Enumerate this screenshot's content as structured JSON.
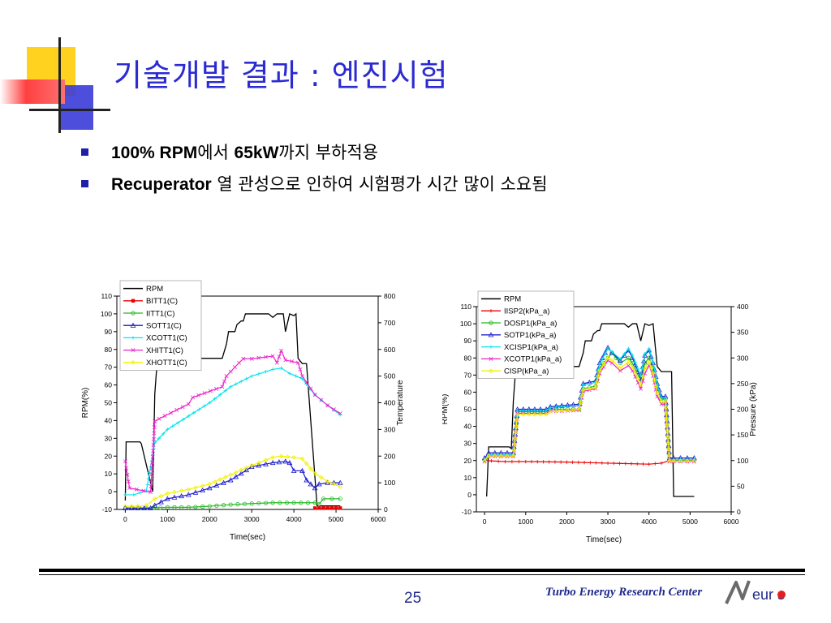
{
  "slide": {
    "title": "기술개발 결과 : 엔진시험",
    "bullets": [
      {
        "bold1": "100% RPM",
        "text1": "에서 ",
        "bold2": "65kW",
        "text2": "까지 부하적용"
      },
      {
        "bold1": "Recuperator",
        "text1": " 열 관성으로 인하여 시험평가 시간 많이 소요됨",
        "bold2": "",
        "text2": ""
      }
    ],
    "page_number": "25",
    "footer_org": "Turbo Energy Research Center",
    "logo_text": "eur s",
    "colors": {
      "title": "#2b2bd2",
      "bullet": "#1f1fa8",
      "footer": "#1e2a8c"
    }
  },
  "chart_data": [
    {
      "type": "line",
      "xlabel": "Time(sec)",
      "ylabel": "RPM(%)",
      "y2label": "Temperature",
      "xlim": [
        -200,
        6000
      ],
      "xticks": [
        0,
        1000,
        2000,
        3000,
        4000,
        5000,
        6000
      ],
      "ylim": [
        -10,
        110
      ],
      "yticks": [
        -10,
        0,
        10,
        20,
        30,
        40,
        50,
        60,
        70,
        80,
        90,
        100,
        110
      ],
      "y2lim": [
        0,
        800
      ],
      "y2ticks": [
        0,
        100,
        200,
        300,
        400,
        500,
        600,
        700,
        800
      ],
      "legend_position": "top-left",
      "series": [
        {
          "name": "RPM",
          "axis": "left",
          "color": "#000000",
          "marker": "none",
          "x": [
            0,
            20,
            100,
            350,
            380,
            650,
            700,
            750,
            1500,
            1550,
            2300,
            2400,
            2450,
            2600,
            2650,
            2750,
            2800,
            2850,
            3400,
            3500,
            3600,
            3700,
            3750,
            3800,
            3900,
            4000,
            4050,
            4100,
            4200,
            4300,
            4550,
            4600,
            5100
          ],
          "y": [
            -5,
            28,
            28,
            28,
            27,
            0,
            55,
            71,
            71,
            75,
            75,
            83,
            90,
            90,
            94,
            96,
            96,
            100,
            100,
            98,
            100,
            100,
            100,
            90,
            100,
            99,
            100,
            75,
            72,
            72,
            -8,
            -8,
            -8
          ]
        },
        {
          "name": "BITT1(C)",
          "axis": "right",
          "color": "#ee0000",
          "marker": "square",
          "x": [
            4500,
            4600,
            4700,
            4800,
            4900,
            5000,
            5100
          ],
          "y": [
            5,
            5,
            5,
            5,
            5,
            5,
            5
          ]
        },
        {
          "name": "IITT1(C)",
          "axis": "right",
          "color": "#22bb22",
          "marker": "circle",
          "x": [
            0,
            500,
            1000,
            1500,
            2000,
            2500,
            3000,
            3500,
            4000,
            4500,
            4600,
            4700,
            5100
          ],
          "y": [
            5,
            5,
            8,
            8,
            12,
            18,
            22,
            25,
            25,
            25,
            20,
            40,
            40
          ]
        },
        {
          "name": "SOTT1(C)",
          "axis": "right",
          "color": "#1a1acc",
          "marker": "triangle",
          "x": [
            0,
            300,
            600,
            700,
            1000,
            1500,
            2000,
            2500,
            3000,
            3500,
            3800,
            3900,
            4000,
            4200,
            4300,
            4500,
            4600,
            4800,
            5100
          ],
          "y": [
            5,
            5,
            5,
            15,
            40,
            55,
            80,
            110,
            160,
            175,
            180,
            175,
            145,
            145,
            110,
            80,
            95,
            100,
            100
          ]
        },
        {
          "name": "XCOTT1(C)",
          "axis": "right",
          "color": "#00e5ee",
          "marker": "plus",
          "x": [
            0,
            200,
            500,
            700,
            1000,
            1500,
            2000,
            2500,
            3000,
            3500,
            3700,
            3900,
            4200,
            4500,
            4800,
            5100
          ],
          "y": [
            55,
            55,
            70,
            250,
            300,
            350,
            400,
            460,
            500,
            525,
            530,
            510,
            490,
            430,
            390,
            355
          ]
        },
        {
          "name": "XHITT1(C)",
          "axis": "right",
          "color": "#ee22cc",
          "marker": "cross",
          "x": [
            0,
            100,
            600,
            700,
            800,
            1500,
            1600,
            2300,
            2400,
            2700,
            2800,
            3000,
            3500,
            3600,
            3700,
            3800,
            4100,
            4200,
            4500,
            4800,
            5100
          ],
          "y": [
            180,
            80,
            65,
            330,
            340,
            395,
            420,
            460,
            500,
            550,
            565,
            565,
            575,
            550,
            595,
            560,
            550,
            500,
            430,
            390,
            360
          ]
        },
        {
          "name": "XHOTT1(C)",
          "axis": "right",
          "color": "#f2f200",
          "marker": "diamond",
          "x": [
            0,
            300,
            500,
            700,
            1000,
            1500,
            2000,
            2500,
            3000,
            3500,
            3700,
            4000,
            4200,
            4500,
            4800,
            5100
          ],
          "y": [
            12,
            12,
            15,
            40,
            60,
            75,
            95,
            130,
            165,
            195,
            200,
            195,
            190,
            135,
            105,
            85
          ]
        }
      ]
    },
    {
      "type": "line",
      "xlabel": "Time(sec)",
      "ylabel": "RPM(%)",
      "y2label": "Pressure (kPa)",
      "xlim": [
        -200,
        6000
      ],
      "xticks": [
        0,
        1000,
        2000,
        3000,
        4000,
        5000,
        6000
      ],
      "ylim": [
        -10,
        110
      ],
      "yticks": [
        -10,
        0,
        10,
        20,
        30,
        40,
        50,
        60,
        70,
        80,
        90,
        100,
        110
      ],
      "y2lim": [
        0,
        400
      ],
      "y2ticks": [
        0,
        50,
        100,
        150,
        200,
        250,
        300,
        350,
        400
      ],
      "legend_position": "top-left",
      "series": [
        {
          "name": "RPM",
          "axis": "left",
          "color": "#000000",
          "marker": "none",
          "x": [
            50,
            100,
            150,
            600,
            650,
            700,
            750,
            1500,
            1550,
            2300,
            2400,
            2450,
            2600,
            2650,
            2750,
            2800,
            2850,
            3400,
            3500,
            3600,
            3700,
            3800,
            3900,
            4000,
            4100,
            4200,
            4300,
            4550,
            4600,
            5100
          ],
          "y": [
            -1,
            28,
            28,
            28,
            27,
            55,
            71,
            71,
            75,
            75,
            83,
            90,
            90,
            94,
            96,
            96,
            100,
            100,
            98,
            100,
            100,
            90,
            100,
            99,
            100,
            75,
            72,
            72,
            -1,
            -1
          ]
        },
        {
          "name": "IISP2(kPa_a)",
          "axis": "right",
          "color": "#ee0000",
          "marker": "plus",
          "x": [
            0,
            500,
            1000,
            2000,
            3000,
            4000,
            4300,
            4500,
            4600,
            5100
          ],
          "y": [
            100,
            98,
            98,
            97,
            95,
            93,
            95,
            100,
            100,
            100
          ]
        },
        {
          "name": "DOSP1(kPa_a)",
          "axis": "right",
          "color": "#22bb22",
          "marker": "circle",
          "x": [
            0,
            100,
            700,
            800,
            1500,
            1600,
            2300,
            2400,
            2700,
            2800,
            3000,
            3100,
            3300,
            3500,
            3600,
            3800,
            3900,
            4000,
            4100,
            4200,
            4300,
            4400,
            4500,
            4600,
            5100
          ],
          "y": [
            100,
            110,
            110,
            195,
            195,
            200,
            200,
            240,
            245,
            280,
            300,
            310,
            290,
            300,
            290,
            255,
            290,
            300,
            280,
            240,
            220,
            220,
            100,
            100,
            100
          ]
        },
        {
          "name": "SOTP1(kPa_a)",
          "axis": "right",
          "color": "#2222cc",
          "marker": "triangle",
          "x": [
            0,
            100,
            700,
            800,
            1500,
            1600,
            2300,
            2400,
            2700,
            2800,
            3000,
            3100,
            3300,
            3500,
            3600,
            3800,
            3900,
            4000,
            4100,
            4200,
            4300,
            4400,
            4500,
            4600,
            5100
          ],
          "y": [
            105,
            115,
            115,
            200,
            200,
            205,
            210,
            250,
            255,
            290,
            320,
            310,
            295,
            315,
            300,
            260,
            305,
            315,
            290,
            250,
            225,
            225,
            105,
            105,
            105
          ]
        },
        {
          "name": "XCISP1(kPa_a)",
          "axis": "right",
          "color": "#00e5ee",
          "marker": "plus",
          "x": [
            0,
            100,
            700,
            800,
            1500,
            1600,
            2300,
            2400,
            2700,
            2800,
            3000,
            3100,
            3300,
            3500,
            3600,
            3800,
            3900,
            4000,
            4100,
            4200,
            4300,
            4400,
            4500,
            4600,
            5100
          ],
          "y": [
            100,
            112,
            112,
            198,
            198,
            203,
            208,
            248,
            252,
            288,
            318,
            312,
            298,
            318,
            305,
            265,
            308,
            318,
            292,
            248,
            222,
            222,
            102,
            102,
            102
          ]
        },
        {
          "name": "XCOTP1(kPa_a)",
          "axis": "right",
          "color": "#ee22cc",
          "marker": "cross",
          "x": [
            0,
            100,
            700,
            800,
            1500,
            1600,
            2300,
            2400,
            2700,
            2800,
            3000,
            3100,
            3300,
            3500,
            3600,
            3800,
            3900,
            4000,
            4100,
            4200,
            4300,
            4400,
            4500,
            4600,
            5100
          ],
          "y": [
            98,
            108,
            108,
            192,
            192,
            196,
            198,
            235,
            240,
            270,
            295,
            290,
            275,
            285,
            275,
            240,
            270,
            285,
            265,
            225,
            210,
            210,
            98,
            98,
            98
          ]
        },
        {
          "name": "CISP(kPa_a)",
          "axis": "right",
          "color": "#f2f200",
          "marker": "diamond",
          "x": [
            0,
            100,
            700,
            800,
            1500,
            1600,
            2300,
            2400,
            2700,
            2800,
            3000,
            3100,
            3300,
            3500,
            3600,
            3800,
            3900,
            4000,
            4100,
            4200,
            4300,
            4400,
            4500,
            4600,
            5100
          ],
          "y": [
            99,
            109,
            109,
            190,
            190,
            195,
            200,
            238,
            242,
            275,
            300,
            295,
            280,
            292,
            282,
            248,
            280,
            292,
            270,
            232,
            215,
            215,
            99,
            99,
            99
          ]
        }
      ]
    }
  ]
}
